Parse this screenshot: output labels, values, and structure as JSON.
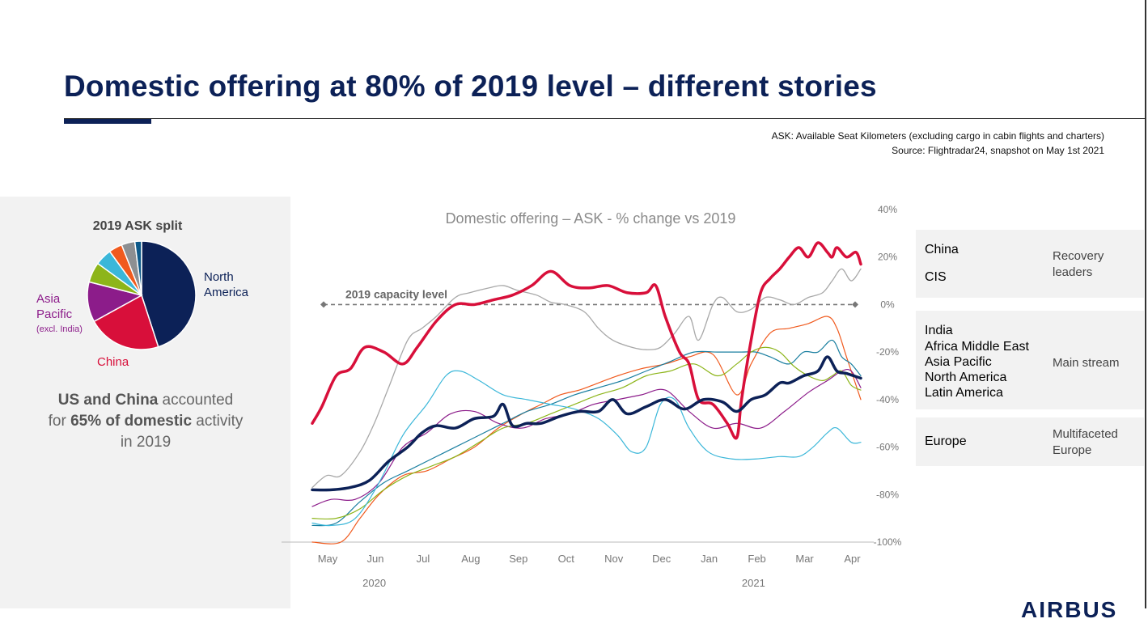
{
  "header": {
    "title": "Domestic offering at 80% of 2019 level – different stories",
    "note_ask": "ASK: Available Seat Kilometers (excluding cargo in cabin flights and charters)",
    "note_source": "Source: Flightradar24, snapshot on May 1st 2021"
  },
  "left_panel": {
    "pie_title": "2019 ASK split",
    "label_na_1": "North",
    "label_na_2": "America",
    "label_ap_1": "Asia",
    "label_ap_2": "Pacific",
    "label_ap_sub": "(excl. India)",
    "label_cn": "China",
    "text_b1": "US and China",
    "text_1": " accounted",
    "text_2": "for ",
    "text_b2": "65% of domestic",
    "text_3": " activity",
    "text_4": "in 2019"
  },
  "legend": {
    "group1_label_1": "Recovery",
    "group1_label_2": "leaders",
    "group2_label": "Main stream",
    "group3_label_1": "Multifaceted",
    "group3_label_2": "Europe"
  },
  "footer": {
    "logo": "AIRBUS"
  },
  "chart_data": [
    {
      "type": "pie",
      "title": "2019 ASK split",
      "slices": [
        {
          "name": "North America",
          "value": 45,
          "color": "#0c2157"
        },
        {
          "name": "China",
          "value": 22,
          "color": "#d80f3a"
        },
        {
          "name": "Asia Pacific (excl. India)",
          "value": 12,
          "color": "#8c1c8a"
        },
        {
          "name": "",
          "value": 6,
          "color": "#8db51a"
        },
        {
          "name": "",
          "value": 5,
          "color": "#3bb7d9"
        },
        {
          "name": "",
          "value": 4,
          "color": "#f05a1e"
        },
        {
          "name": "",
          "value": 4,
          "color": "#8d8f92"
        },
        {
          "name": "",
          "value": 2,
          "color": "#0e5a8a"
        }
      ]
    },
    {
      "type": "line",
      "title": "Domestic offering – ASK  - % change vs 2019",
      "x_ticks": [
        "May",
        "Jun",
        "Jul",
        "Aug",
        "Sep",
        "Oct",
        "Nov",
        "Dec",
        "Jan",
        "Feb",
        "Mar",
        "Apr"
      ],
      "x_groups": [
        "2020",
        "2021"
      ],
      "y_ticks": [
        "40%",
        "20%",
        "0%",
        "-20%",
        "-40%",
        "-60%",
        "-80%",
        "-100%"
      ],
      "ylim": [
        -100,
        40
      ],
      "reference_line": {
        "label": "2019 capacity level",
        "value": 0
      },
      "series": [
        {
          "name": "China",
          "color": "#d80f3a",
          "width": 3.5,
          "x": [
            0,
            0.2,
            0.5,
            0.8,
            1.1,
            1.5,
            1.9,
            2.2,
            2.6,
            3.0,
            3.4,
            3.8,
            4.2,
            4.6,
            5.0,
            5.4,
            5.8,
            6.2,
            6.6,
            7.0,
            7.2,
            7.4,
            7.7,
            7.9,
            8.1,
            8.4,
            8.7,
            8.9,
            9.0,
            9.2,
            9.4,
            9.6,
            9.8,
            10.0,
            10.2,
            10.4,
            10.6,
            10.8,
            10.9,
            11.0,
            11.2,
            11.4,
            11.5
          ],
          "y": [
            -50,
            -43,
            -30,
            -27,
            -18,
            -20,
            -25,
            -18,
            -7,
            0,
            0,
            2,
            4,
            8,
            14,
            8,
            7,
            8,
            5,
            5,
            8,
            -5,
            -20,
            -25,
            -40,
            -42,
            -50,
            -56,
            -40,
            -15,
            5,
            11,
            15,
            20,
            24,
            20,
            26,
            22,
            20,
            24,
            20,
            22,
            17
          ]
        },
        {
          "name": "CIS",
          "color": "#a8a8a8",
          "width": 1.3,
          "x": [
            0,
            0.3,
            0.6,
            1.0,
            1.3,
            1.6,
            2.0,
            2.3,
            2.6,
            3.0,
            3.3,
            3.7,
            4.0,
            4.3,
            4.7,
            5.0,
            5.3,
            5.7,
            6.0,
            6.3,
            6.7,
            7.0,
            7.3,
            7.6,
            7.9,
            8.1,
            8.4,
            8.6,
            8.9,
            9.2,
            9.5,
            9.8,
            10.1,
            10.4,
            10.7,
            10.9,
            11.1,
            11.3,
            11.5
          ],
          "y": [
            -77,
            -72,
            -72,
            -62,
            -50,
            -35,
            -15,
            -10,
            -5,
            3,
            5,
            7,
            8,
            6,
            4,
            1,
            0,
            -3,
            -10,
            -15,
            -18,
            -19,
            -18,
            -12,
            -5,
            -15,
            0,
            3,
            -3,
            -2,
            3,
            2,
            0,
            3,
            5,
            10,
            15,
            10,
            15
          ]
        },
        {
          "name": "India",
          "color": "#f05a1e",
          "width": 1.2,
          "x": [
            0,
            0.6,
            1.0,
            1.4,
            1.9,
            2.4,
            2.9,
            3.4,
            3.9,
            4.4,
            4.8,
            5.2,
            5.6,
            6.0,
            6.4,
            6.9,
            7.4,
            7.9,
            8.4,
            8.9,
            9.2,
            9.6,
            10.0,
            10.4,
            10.8,
            11.0,
            11.2,
            11.5
          ],
          "y": [
            -100,
            -100,
            -90,
            -80,
            -72,
            -70,
            -65,
            -60,
            -52,
            -46,
            -42,
            -38,
            -36,
            -33,
            -30,
            -27,
            -25,
            -22,
            -21,
            -38,
            -25,
            -12,
            -10,
            -8,
            -5,
            -10,
            -22,
            -40
          ]
        },
        {
          "name": "Africa Middle East",
          "color": "#1a7fa0",
          "width": 1.2,
          "x": [
            0,
            0.5,
            1.0,
            1.5,
            2.0,
            2.5,
            3.0,
            3.5,
            4.0,
            4.5,
            5.0,
            5.5,
            6.0,
            6.5,
            7.0,
            7.5,
            8.0,
            8.5,
            9.0,
            9.3,
            9.6,
            10.0,
            10.3,
            10.6,
            10.9,
            11.1,
            11.3,
            11.5
          ],
          "y": [
            -93,
            -92,
            -83,
            -75,
            -70,
            -65,
            -60,
            -55,
            -50,
            -45,
            -42,
            -38,
            -35,
            -32,
            -28,
            -24,
            -20,
            -20,
            -20,
            -20,
            -22,
            -25,
            -20,
            -20,
            -15,
            -22,
            -25,
            -30
          ]
        },
        {
          "name": "Asia Pacific",
          "color": "#8c1c8a",
          "width": 1.2,
          "x": [
            0,
            0.4,
            0.9,
            1.4,
            1.9,
            2.4,
            2.9,
            3.4,
            3.9,
            4.4,
            4.9,
            5.4,
            5.9,
            6.4,
            6.9,
            7.4,
            7.9,
            8.4,
            8.9,
            9.4,
            9.9,
            10.4,
            10.8,
            11.1,
            11.3,
            11.5
          ],
          "y": [
            -85,
            -82,
            -82,
            -75,
            -60,
            -54,
            -46,
            -45,
            -50,
            -52,
            -48,
            -46,
            -42,
            -40,
            -38,
            -36,
            -45,
            -52,
            -50,
            -52,
            -45,
            -37,
            -32,
            -28,
            -28,
            -35
          ]
        },
        {
          "name": "North America",
          "color": "#0c2157",
          "width": 3.5,
          "x": [
            0,
            0.4,
            0.8,
            1.2,
            1.6,
            2.0,
            2.3,
            2.6,
            3.0,
            3.4,
            3.8,
            4.0,
            4.2,
            4.5,
            4.8,
            5.2,
            5.6,
            6.0,
            6.3,
            6.6,
            7.0,
            7.4,
            7.8,
            8.2,
            8.6,
            8.9,
            9.2,
            9.5,
            9.8,
            10.0,
            10.3,
            10.6,
            10.8,
            11.0,
            11.2,
            11.5
          ],
          "y": [
            -78,
            -78,
            -77,
            -74,
            -66,
            -60,
            -54,
            -51,
            -52,
            -48,
            -47,
            -42,
            -51,
            -50,
            -50,
            -47,
            -45,
            -45,
            -40,
            -46,
            -43,
            -40,
            -44,
            -40,
            -41,
            -45,
            -40,
            -38,
            -33,
            -33,
            -30,
            -28,
            -22,
            -28,
            -29,
            -31
          ]
        },
        {
          "name": "Latin America",
          "color": "#8db51a",
          "width": 1.2,
          "x": [
            0,
            0.5,
            1.0,
            1.5,
            2.0,
            2.5,
            3.0,
            3.5,
            4.0,
            4.5,
            5.0,
            5.5,
            6.0,
            6.5,
            7.0,
            7.5,
            8.0,
            8.5,
            8.9,
            9.2,
            9.5,
            9.8,
            10.1,
            10.4,
            10.7,
            10.9,
            11.1,
            11.3,
            11.5
          ],
          "y": [
            -90,
            -90,
            -86,
            -78,
            -72,
            -68,
            -64,
            -58,
            -52,
            -50,
            -46,
            -42,
            -38,
            -35,
            -30,
            -28,
            -25,
            -30,
            -25,
            -20,
            -18,
            -20,
            -26,
            -30,
            -32,
            -30,
            -28,
            -34,
            -36
          ]
        },
        {
          "name": "Europe",
          "color": "#3bb7d9",
          "width": 1.2,
          "x": [
            0,
            0.4,
            0.9,
            1.4,
            1.9,
            2.4,
            2.8,
            3.1,
            3.5,
            4.0,
            4.5,
            5.0,
            5.5,
            6.0,
            6.4,
            6.7,
            7.0,
            7.3,
            7.6,
            7.9,
            8.3,
            8.8,
            9.3,
            9.8,
            10.2,
            10.5,
            10.8,
            11.0,
            11.3,
            11.5
          ],
          "y": [
            -92,
            -93,
            -90,
            -75,
            -55,
            -42,
            -30,
            -28,
            -32,
            -38,
            -40,
            -42,
            -44,
            -48,
            -55,
            -62,
            -60,
            -42,
            -40,
            -52,
            -62,
            -65,
            -65,
            -64,
            -64,
            -60,
            -54,
            -52,
            -58,
            -58
          ]
        }
      ]
    }
  ]
}
